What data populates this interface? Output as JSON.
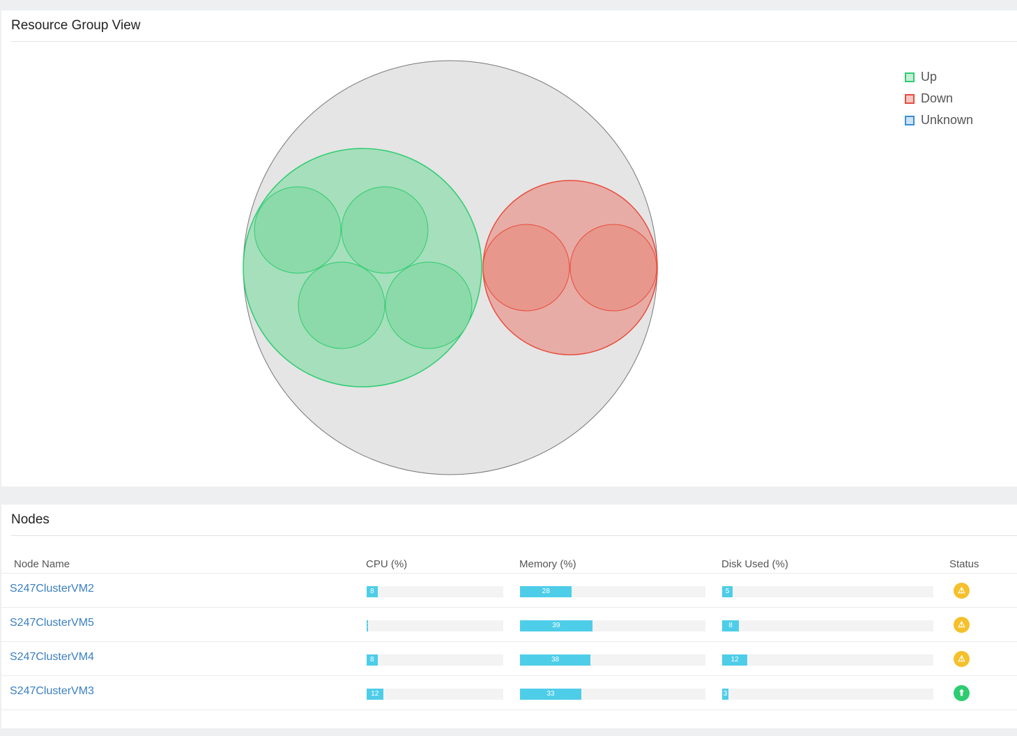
{
  "resource_group": {
    "title": "Resource Group View",
    "legend": [
      {
        "label": "Up",
        "fill": "#c9eed6",
        "stroke": "#2ecc71"
      },
      {
        "label": "Down",
        "fill": "#f6c8c4",
        "stroke": "#e74c3c"
      },
      {
        "label": "Unknown",
        "fill": "#cde4f6",
        "stroke": "#3a8fd6"
      }
    ]
  },
  "nodes": {
    "title": "Nodes",
    "columns": [
      "Node Name",
      "CPU (%)",
      "Memory (%)",
      "Disk Used (%)",
      "Status"
    ],
    "rows": [
      {
        "name": "S247ClusterVM2",
        "cpu": 8,
        "memory": 28,
        "disk": 5,
        "status": "warning"
      },
      {
        "name": "S247ClusterVM5",
        "cpu": 1,
        "memory": 39,
        "disk": 8,
        "status": "warning"
      },
      {
        "name": "S247ClusterVM4",
        "cpu": 8,
        "memory": 38,
        "disk": 12,
        "status": "warning"
      },
      {
        "name": "S247ClusterVM3",
        "cpu": 12,
        "memory": 33,
        "disk": 3,
        "status": "up"
      }
    ]
  },
  "colors": {
    "warning": "#f5c02c",
    "up": "#2ecc71",
    "bar": "#4ecde8"
  }
}
